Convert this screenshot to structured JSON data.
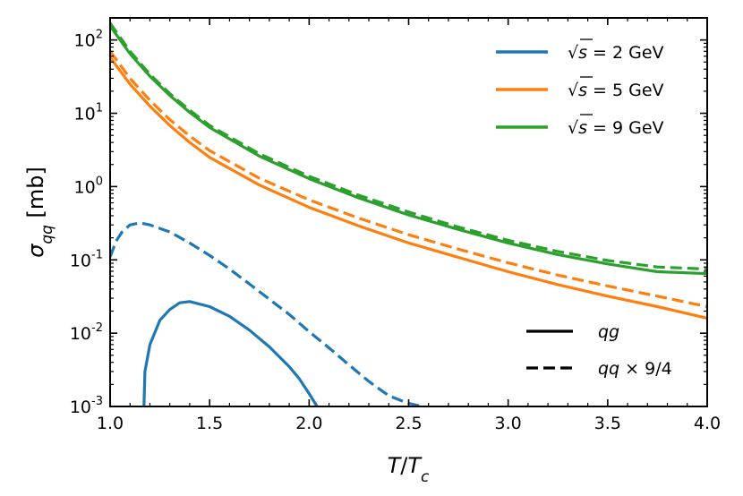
{
  "chart_data": {
    "type": "line",
    "xlabel": "T/T_c",
    "ylabel": "σ_qq [mb]",
    "xlim": [
      1.0,
      4.0
    ],
    "ylim": [
      0.001,
      200
    ],
    "yscale": "log",
    "xticks": [
      "1.0",
      "1.5",
      "2.0",
      "2.5",
      "3.0",
      "3.5",
      "4.0"
    ],
    "yticks": [
      {
        "base": "10",
        "exp": "2"
      },
      {
        "base": "10",
        "exp": "1"
      },
      {
        "base": "10",
        "exp": "0"
      },
      {
        "base": "10",
        "exp": "-1"
      },
      {
        "base": "10",
        "exp": "-2"
      },
      {
        "base": "10",
        "exp": "-3"
      }
    ],
    "colors": {
      "s2": "#1f77b4",
      "s5": "#ff7f0e",
      "s9": "#2ca02c",
      "axis": "#000000"
    },
    "series": [
      {
        "name": "√s = 2 GeV, qg",
        "color": "s2",
        "style": "solid",
        "x": [
          1.17,
          1.175,
          1.2,
          1.25,
          1.3,
          1.35,
          1.4,
          1.5,
          1.6,
          1.7,
          1.8,
          1.9,
          1.95,
          2.0,
          2.04
        ],
        "y": [
          0.001,
          0.003,
          0.007,
          0.015,
          0.021,
          0.026,
          0.027,
          0.023,
          0.017,
          0.011,
          0.0065,
          0.0035,
          0.0024,
          0.0015,
          0.001
        ]
      },
      {
        "name": "√s = 2 GeV, qq × 9/4",
        "color": "s2",
        "style": "dashed",
        "x": [
          1.0,
          1.03,
          1.06,
          1.1,
          1.15,
          1.2,
          1.3,
          1.4,
          1.5,
          1.6,
          1.7,
          1.8,
          1.9,
          2.0,
          2.1,
          2.2,
          2.3,
          2.4,
          2.5,
          2.57
        ],
        "y": [
          0.11,
          0.18,
          0.24,
          0.3,
          0.32,
          0.3,
          0.24,
          0.17,
          0.115,
          0.075,
          0.047,
          0.029,
          0.018,
          0.0105,
          0.0063,
          0.0037,
          0.0022,
          0.0014,
          0.0011,
          0.001
        ]
      },
      {
        "name": "√s = 5 GeV, qg",
        "color": "s5",
        "style": "solid",
        "x": [
          1.0,
          1.1,
          1.2,
          1.3,
          1.4,
          1.5,
          1.75,
          2.0,
          2.25,
          2.5,
          2.75,
          3.0,
          3.25,
          3.5,
          3.75,
          4.0
        ],
        "y": [
          58,
          25,
          12.5,
          6.8,
          4.0,
          2.5,
          1.05,
          0.52,
          0.29,
          0.17,
          0.108,
          0.069,
          0.046,
          0.032,
          0.023,
          0.016
        ]
      },
      {
        "name": "√s = 5 GeV, qq × 9/4",
        "color": "s5",
        "style": "dashed",
        "x": [
          1.0,
          1.1,
          1.2,
          1.3,
          1.4,
          1.5,
          1.75,
          2.0,
          2.25,
          2.5,
          2.75,
          3.0,
          3.25,
          3.5,
          3.75,
          4.0
        ],
        "y": [
          70,
          30,
          15,
          8.2,
          4.9,
          3.1,
          1.3,
          0.66,
          0.37,
          0.22,
          0.14,
          0.091,
          0.062,
          0.044,
          0.032,
          0.023
        ]
      },
      {
        "name": "√s = 9 GeV, qg",
        "color": "s9",
        "style": "solid",
        "x": [
          1.0,
          1.1,
          1.2,
          1.3,
          1.4,
          1.5,
          1.75,
          2.0,
          2.25,
          2.5,
          2.75,
          3.0,
          3.25,
          3.5,
          3.75,
          4.0
        ],
        "y": [
          155,
          65,
          32,
          17.5,
          10.3,
          6.4,
          2.6,
          1.28,
          0.7,
          0.41,
          0.26,
          0.17,
          0.118,
          0.088,
          0.069,
          0.065
        ]
      },
      {
        "name": "√s = 9 GeV, qq × 9/4",
        "color": "s9",
        "style": "dashed",
        "x": [
          1.0,
          1.1,
          1.2,
          1.3,
          1.4,
          1.5,
          1.75,
          2.0,
          2.25,
          2.5,
          2.75,
          3.0,
          3.25,
          3.5,
          3.75,
          4.0
        ],
        "y": [
          170,
          70,
          34,
          18.5,
          11,
          6.8,
          2.8,
          1.38,
          0.76,
          0.45,
          0.28,
          0.185,
          0.13,
          0.098,
          0.08,
          0.075
        ]
      }
    ],
    "legend_color": {
      "placement": "top-right",
      "sqrt_symbol": "√",
      "entries": [
        {
          "s_var": "s",
          "rest": " = 2 GeV",
          "color": "s2"
        },
        {
          "s_var": "s",
          "rest": " = 5 GeV",
          "color": "s5"
        },
        {
          "s_var": "s",
          "rest": " = 9 GeV",
          "color": "s9"
        }
      ]
    },
    "legend_style": {
      "placement": "bottom-right",
      "entries": [
        {
          "label": "qg",
          "style": "solid"
        },
        {
          "label": "qq",
          "suffix": " × 9/4",
          "style": "dashed"
        }
      ]
    }
  },
  "labels": {
    "x_main": "T",
    "x_slash": "/",
    "x_sub_base": "T",
    "x_sub": "c",
    "y_sigma": "σ",
    "y_sub": "qq",
    "y_unit": " [mb]"
  }
}
